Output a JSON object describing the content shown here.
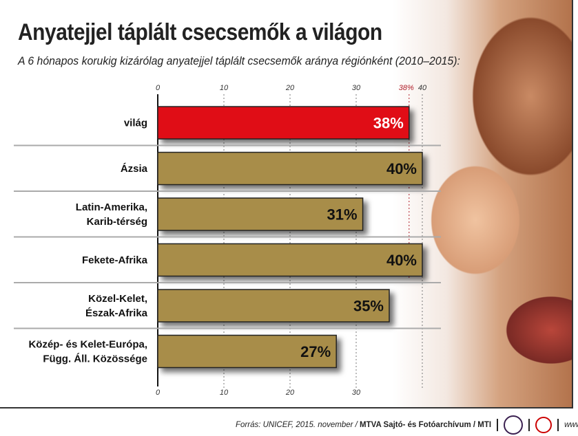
{
  "header": {
    "title": "Anyatejjel táplált csecsemők a világon",
    "subtitle": "A 6 hónapos korukig kizárólag anyatejjel táplált csecsemők aránya régiónként (2010–2015):"
  },
  "chart_data": {
    "type": "bar",
    "orientation": "horizontal",
    "categories": [
      [
        "világ"
      ],
      [
        "Ázsia"
      ],
      [
        "Latin-Amerika,",
        "Karib-térség"
      ],
      [
        "Fekete-Afrika"
      ],
      [
        "Közel-Kelet,",
        "Észak-Afrika"
      ],
      [
        "Közép- és Kelet-Európa,",
        "Függ. Áll. Közössége"
      ]
    ],
    "values": [
      38,
      40,
      31,
      40,
      35,
      27
    ],
    "data_labels": [
      "38%",
      "40%",
      "31%",
      "40%",
      "35%",
      "27%"
    ],
    "xlim": [
      0,
      40
    ],
    "top_ticks": [
      "0",
      "10",
      "20",
      "30",
      "40"
    ],
    "bottom_ticks": [
      "0",
      "10",
      "20",
      "30"
    ],
    "reference_line": {
      "value": 38,
      "label": "38%"
    },
    "colors": {
      "highlight": "#e00b17",
      "default": "#a88d4a",
      "reference": "#b0202a"
    },
    "grid": true
  },
  "footer": {
    "source": "Forrás: UNICEF, 2015. november / ",
    "agency": "MTVA Sajtó- és Fotóarchívum / MTI",
    "logo_text": "MTVA",
    "url": "www.mti.hu"
  }
}
